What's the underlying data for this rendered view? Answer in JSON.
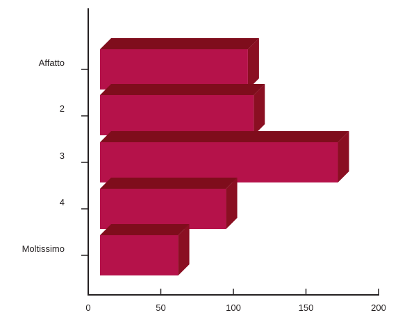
{
  "chart_data": {
    "type": "bar",
    "orientation": "horizontal",
    "style": "3d",
    "categories": [
      "Affatto",
      "2",
      "3",
      "4",
      "Moltissimo"
    ],
    "values": [
      110,
      114,
      172,
      95,
      62
    ],
    "xlim": [
      0,
      200
    ],
    "xticks": [
      "0",
      "50",
      "100",
      "150",
      "200"
    ],
    "title": "",
    "xlabel": "",
    "ylabel": "",
    "grid": false,
    "legend": "none",
    "colors": {
      "bar_front": "#b5124a",
      "bar_top": "#7f0d1c",
      "bar_side": "#8a0f22",
      "axis": "#231f20"
    }
  }
}
